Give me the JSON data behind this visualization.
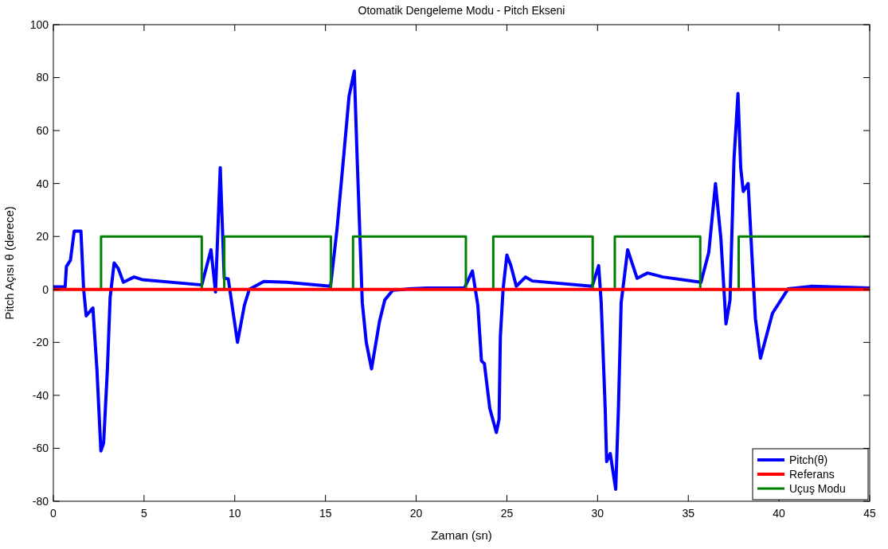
{
  "chart_data": {
    "type": "line",
    "title": "Otomatik Dengeleme Modu - Pitch Ekseni",
    "xlabel": "Zaman (sn)",
    "ylabel": "Pitch Açısı θ (derece)",
    "xlim": [
      0,
      45
    ],
    "xticks": [
      0,
      5,
      10,
      15,
      20,
      25,
      30,
      35,
      40,
      45
    ],
    "ylim": [
      -80,
      100
    ],
    "yticks": [
      -80,
      -60,
      -40,
      -20,
      0,
      20,
      40,
      60,
      80,
      100
    ],
    "grid": false,
    "legend": "bottom right",
    "line_style": "solid",
    "marker": "none",
    "series": [
      {
        "name": "Pitch(θ)",
        "color": "#0000ff",
        "x": [
          0,
          0.65,
          0.72,
          0.94,
          1.15,
          1.52,
          1.67,
          1.81,
          2.18,
          2.4,
          2.62,
          2.77,
          2.98,
          3.13,
          3.35,
          3.57,
          3.86,
          4.45,
          4.89,
          8.18,
          8.69,
          8.94,
          9.2,
          9.42,
          9.64,
          10.15,
          10.53,
          10.8,
          11.6,
          12.86,
          15.28,
          15.64,
          16.0,
          16.3,
          16.59,
          16.74,
          16.89,
          17.03,
          17.25,
          17.54,
          17.98,
          18.27,
          18.71,
          19.6,
          20.6,
          22.66,
          23.1,
          23.4,
          23.6,
          23.76,
          24.06,
          24.42,
          24.57,
          24.64,
          24.79,
          25.0,
          25.22,
          25.52,
          26.03,
          26.4,
          29.7,
          30.06,
          30.2,
          30.42,
          30.5,
          30.7,
          31.0,
          31.15,
          31.3,
          31.66,
          32.18,
          32.76,
          33.6,
          35.7,
          36.13,
          36.5,
          36.8,
          37.08,
          37.3,
          37.52,
          37.74,
          37.89,
          38.03,
          38.3,
          38.54,
          38.7,
          38.98,
          39.64,
          40.5,
          41.8,
          44.3,
          45
        ],
        "values": [
          1,
          1,
          8.7,
          11,
          22,
          22,
          0,
          -10,
          -7,
          -30,
          -61,
          -58,
          -30,
          -3,
          10,
          8,
          2.7,
          4.7,
          3.7,
          1.7,
          15,
          -1,
          46,
          4.2,
          4,
          -20,
          -6,
          0,
          3,
          2.7,
          1.2,
          23,
          50,
          73,
          82.5,
          51,
          22,
          -5,
          -20,
          -30,
          -12,
          -4,
          -0.3,
          0.2,
          0.5,
          0.5,
          7,
          -6,
          -27,
          -28,
          -45,
          -54,
          -49,
          -18,
          0,
          13,
          9,
          1.2,
          4.7,
          3.2,
          1.2,
          9,
          -5,
          -45,
          -65,
          -62,
          -75.5,
          -45,
          -5,
          15,
          4.2,
          6.2,
          4.7,
          2.7,
          14,
          40,
          19,
          -13,
          -4,
          49,
          74,
          46,
          37,
          40,
          9,
          -11,
          -26,
          -9,
          0.2,
          1.2,
          0.7,
          0.5
        ]
      },
      {
        "name": "Referans",
        "color": "#ff0000",
        "x": [
          0,
          45
        ],
        "values": [
          0,
          0
        ]
      },
      {
        "name": "Uçuş Modu",
        "type": "step",
        "color": "#008000",
        "x": [
          0,
          2.63,
          8.18,
          9.42,
          15.3,
          16.52,
          22.74,
          24.25,
          29.73,
          30.95,
          35.66,
          37.78,
          45
        ],
        "values": [
          0,
          20,
          0,
          20,
          0,
          20,
          0,
          20,
          0,
          20,
          0,
          20,
          20
        ]
      }
    ]
  }
}
